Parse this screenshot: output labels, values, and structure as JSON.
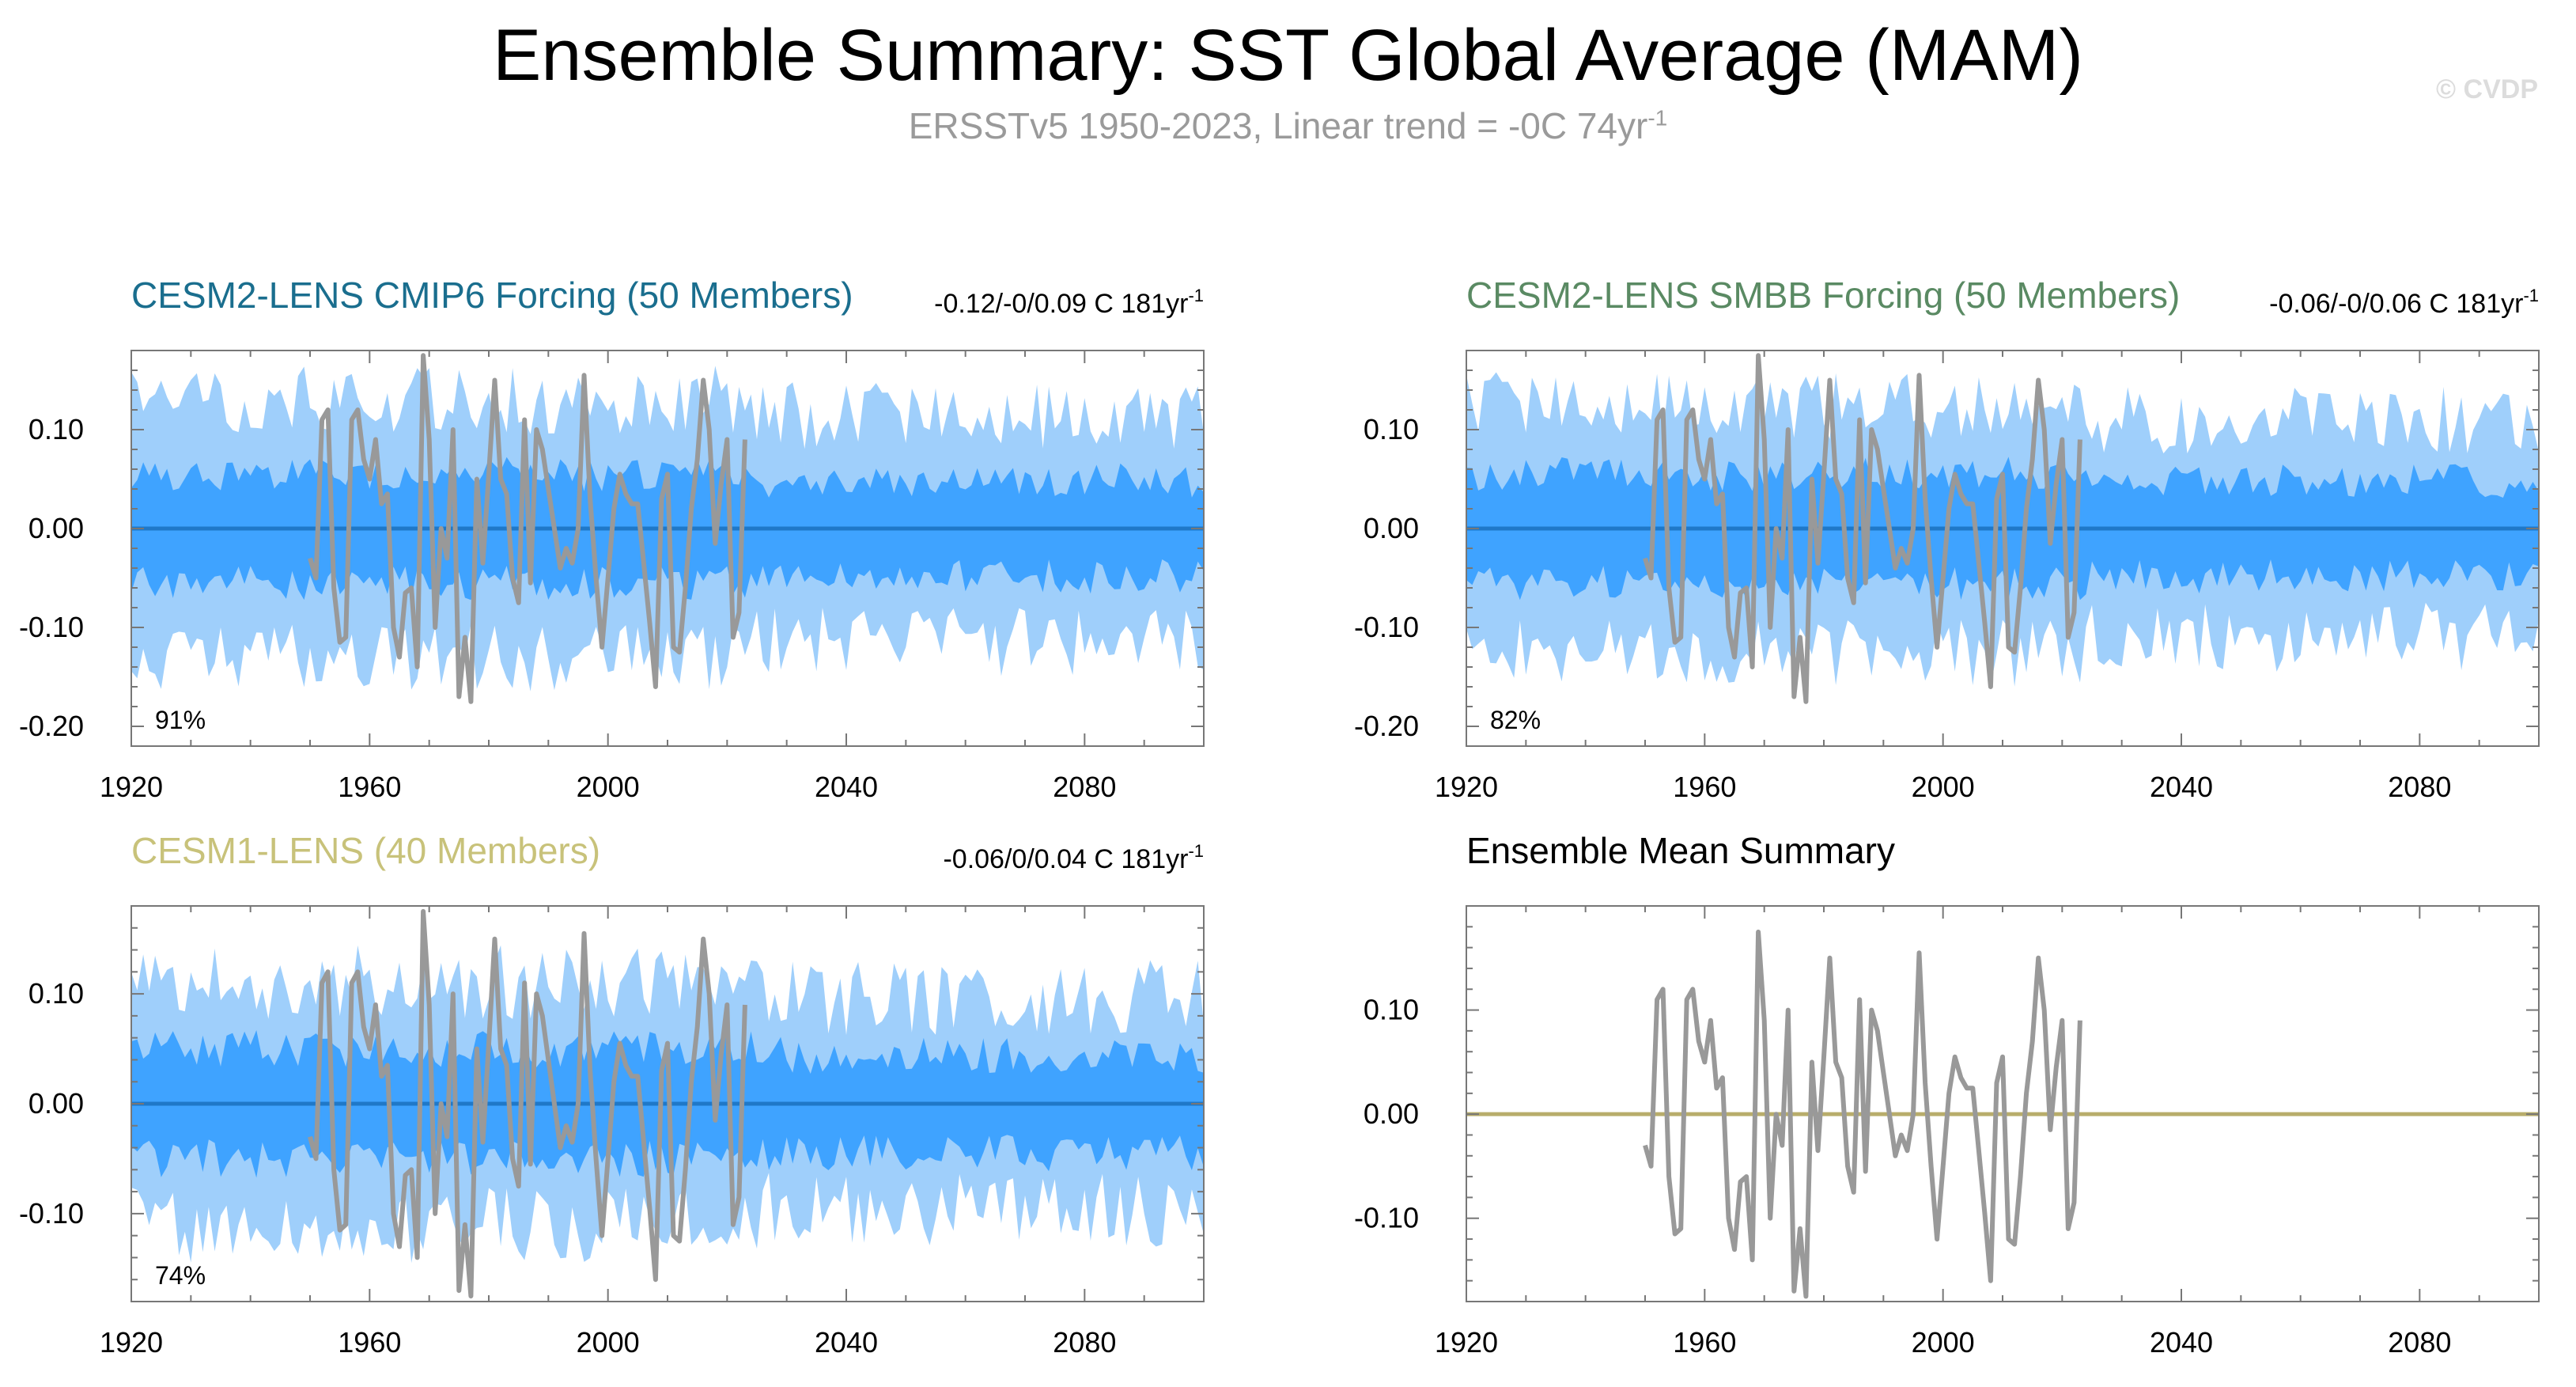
{
  "title": "Ensemble Summary: SST Global Average (MAM)",
  "subtitle": {
    "text": "ERSSTv5 1950-2023, Linear trend = -0C 74yr",
    "superscript": "-1"
  },
  "watermark": "© CVDP",
  "colors": {
    "outer_band": "#9fcffb",
    "inner_band": "#3fa3ff",
    "ensemble_mean": "#1f78c8",
    "observations": "#999999",
    "summary_zero_line": "#b8ad6b",
    "title_cmip6": "#1a6e8e",
    "title_smbb": "#5a8a63",
    "title_cesm1": "#c8c27a"
  },
  "chart_data": [
    {
      "id": "cmip6",
      "type": "area",
      "title": "CESM2-LENS CMIP6 Forcing (50 Members)",
      "trend_label": "-0.12/-0/0.09 C 181yr",
      "trend_superscript": "-1",
      "percentile_label": "91%",
      "xlim": [
        1920,
        2100
      ],
      "ylim": [
        -0.22,
        0.18
      ],
      "xticks": [
        1920,
        1960,
        2000,
        2040,
        2080
      ],
      "yticks": [
        -0.2,
        -0.1,
        0.0,
        0.1
      ],
      "ytick_labels": [
        "-0.20",
        "-0.10",
        "0.00",
        "0.10"
      ],
      "band_outer": 0.13,
      "band_inner": 0.055,
      "ensemble_mean": 0.0,
      "seed": 11
    },
    {
      "id": "smbb",
      "type": "area",
      "title": "CESM2-LENS SMBB Forcing (50 Members)",
      "trend_label": "-0.06/-0/0.06 C 181yr",
      "trend_superscript": "-1",
      "percentile_label": "82%",
      "xlim": [
        1920,
        2100
      ],
      "ylim": [
        -0.22,
        0.18
      ],
      "xticks": [
        1920,
        1960,
        2000,
        2040,
        2080
      ],
      "yticks": [
        -0.2,
        -0.1,
        0.0,
        0.1
      ],
      "ytick_labels": [
        "-0.20",
        "-0.10",
        "0.00",
        "0.10"
      ],
      "band_outer": 0.125,
      "band_inner": 0.055,
      "ensemble_mean": 0.0,
      "seed": 23
    },
    {
      "id": "cesm1",
      "type": "area",
      "title": "CESM1-LENS (40 Members)",
      "trend_label": "-0.06/0/0.04 C 181yr",
      "trend_superscript": "-1",
      "percentile_label": "74%",
      "xlim": [
        1920,
        2100
      ],
      "ylim": [
        -0.18,
        0.18
      ],
      "xticks": [
        1920,
        1960,
        2000,
        2040,
        2080
      ],
      "yticks": [
        -0.1,
        0.0,
        0.1
      ],
      "ytick_labels": [
        "-0.10",
        "0.00",
        "0.10"
      ],
      "band_outer": 0.11,
      "band_inner": 0.05,
      "ensemble_mean": 0.0,
      "seed": 37
    },
    {
      "id": "summary",
      "type": "line",
      "title": "Ensemble Mean Summary",
      "xlim": [
        1920,
        2100
      ],
      "ylim": [
        -0.18,
        0.2
      ],
      "xticks": [
        1920,
        1960,
        2000,
        2040,
        2080
      ],
      "yticks": [
        -0.1,
        0.0,
        0.1
      ],
      "ytick_labels": [
        "-0.10",
        "0.00",
        "0.10"
      ],
      "ensemble_mean": 0.0
    }
  ],
  "observations": {
    "name": "ERSSTv5",
    "x_start": 1950,
    "values": [
      -0.03,
      -0.05,
      0.11,
      0.12,
      -0.06,
      -0.115,
      -0.11,
      0.11,
      0.12,
      0.07,
      0.05,
      0.09,
      0.025,
      0.035,
      -0.1,
      -0.13,
      -0.065,
      -0.06,
      -0.14,
      0.175,
      0.09,
      -0.1,
      0.0,
      -0.03,
      0.1,
      -0.17,
      -0.11,
      -0.175,
      0.05,
      -0.035,
      0.055,
      0.15,
      0.05,
      0.035,
      -0.05,
      -0.075,
      0.11,
      -0.055,
      0.1,
      0.08,
      0.04,
      0.0,
      -0.04,
      -0.02,
      -0.035,
      0.0,
      0.155,
      0.03,
      -0.05,
      -0.12,
      -0.05,
      0.02,
      0.055,
      0.035,
      0.025,
      0.025,
      -0.035,
      -0.095,
      -0.16,
      0.03,
      0.055,
      -0.12,
      -0.125,
      -0.06,
      0.02,
      0.07,
      0.15,
      0.1,
      -0.015,
      0.045,
      0.09,
      -0.11,
      -0.085,
      0.09
    ]
  }
}
